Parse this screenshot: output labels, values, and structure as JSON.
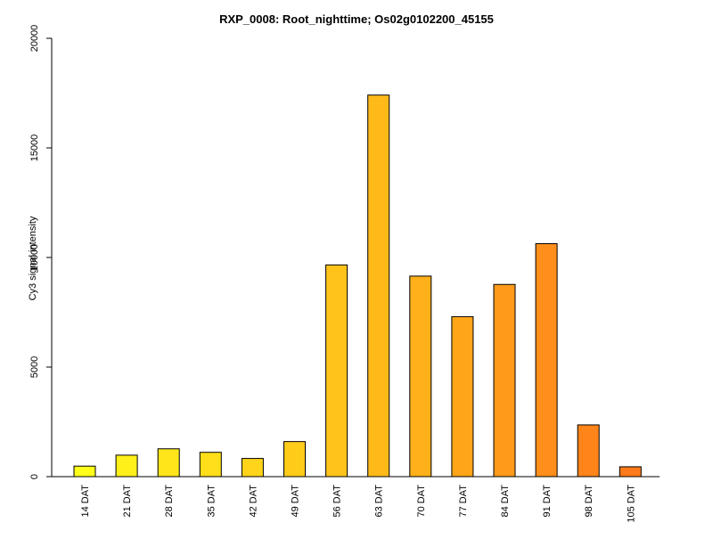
{
  "chart_data": {
    "type": "bar",
    "title": "RXP_0008: Root_nighttime; Os02g0102200_45155",
    "xlabel": "",
    "ylabel": "Cy3 signal intensity",
    "ylim": [
      0,
      20000
    ],
    "yticks": [
      0,
      5000,
      10000,
      15000,
      20000
    ],
    "categories": [
      "14 DAT",
      "21 DAT",
      "28 DAT",
      "35 DAT",
      "42 DAT",
      "49 DAT",
      "56 DAT",
      "63 DAT",
      "70 DAT",
      "77 DAT",
      "84 DAT",
      "91 DAT",
      "98 DAT",
      "105 DAT"
    ],
    "values": [
      480,
      980,
      1270,
      1110,
      830,
      1600,
      9660,
      17410,
      9150,
      7300,
      8770,
      10630,
      2360,
      450
    ],
    "colors": [
      "#FFFF1A",
      "#FFF01A",
      "#FFE51A",
      "#FFDE1A",
      "#FFD41A",
      "#FFCC1A",
      "#FFC31A",
      "#FFBA1A",
      "#FFB01A",
      "#FFA51A",
      "#FF9A1A",
      "#FF8F1A",
      "#FF851A",
      "#FF7A1A"
    ],
    "grid": false,
    "legend": "none"
  }
}
